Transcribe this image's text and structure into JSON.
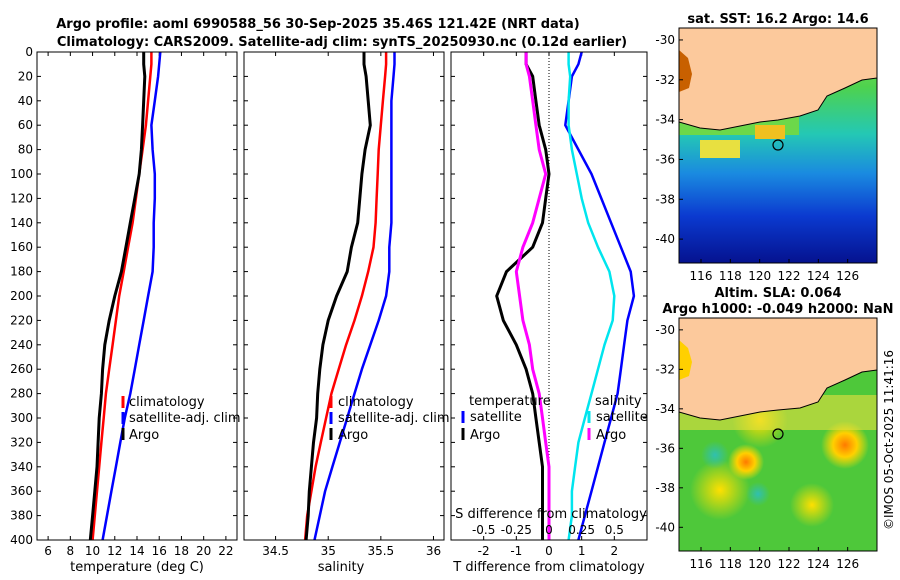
{
  "title_line1": "Argo profile: aoml 6990588_56 30-Sep-2025 35.46S 121.42E (NRT data)",
  "title_line2": "Climatology: CARS2009. Satellite-adj clim: synTS_20250930.nc (0.12d earlier)",
  "watermark": "©IMOS 05-Oct-2025 11:41:16",
  "colors": {
    "argo": "#000000",
    "clim": "#ff0000",
    "sat": "#0000ff",
    "sdiff": "#00e5ee",
    "tdiff_argo": "#ff00ff",
    "land": "#fcc99c"
  },
  "chart_data": [
    {
      "type": "line",
      "id": "temperature",
      "xlabel": "temperature (deg C)",
      "xlim": [
        5,
        23
      ],
      "xticks": [
        "6",
        "8",
        "10",
        "12",
        "14",
        "16",
        "18",
        "20",
        "22"
      ],
      "ylim": [
        0,
        400
      ],
      "yticks": [
        "0",
        "20",
        "40",
        "60",
        "80",
        "100",
        "120",
        "140",
        "160",
        "180",
        "200",
        "220",
        "240",
        "260",
        "280",
        "300",
        "320",
        "340",
        "360",
        "380",
        "400"
      ],
      "depth": [
        0,
        10,
        20,
        40,
        60,
        80,
        100,
        120,
        140,
        160,
        180,
        200,
        220,
        240,
        260,
        280,
        300,
        320,
        340,
        360,
        380,
        400
      ],
      "series": [
        {
          "name": "climatology",
          "color": "#ff0000",
          "values": [
            15.3,
            15.3,
            15.2,
            15.0,
            14.8,
            14.5,
            14.2,
            13.9,
            13.6,
            13.2,
            12.8,
            12.4,
            12.1,
            11.8,
            11.5,
            11.2,
            11.0,
            10.8,
            10.6,
            10.4,
            10.2,
            10.0
          ]
        },
        {
          "name": "satellite-adj. clim",
          "color": "#0000ff",
          "values": [
            16.1,
            16.0,
            15.9,
            15.6,
            15.3,
            15.4,
            15.6,
            15.6,
            15.5,
            15.5,
            15.4,
            15.0,
            14.6,
            14.2,
            13.8,
            13.4,
            12.9,
            12.5,
            12.1,
            11.7,
            11.3,
            10.9
          ]
        },
        {
          "name": "Argo",
          "color": "#000000",
          "values": [
            14.6,
            14.6,
            14.7,
            14.6,
            14.5,
            14.4,
            14.2,
            13.8,
            13.4,
            13.0,
            12.6,
            12.0,
            11.5,
            11.1,
            10.9,
            10.8,
            10.6,
            10.5,
            10.4,
            10.2,
            10.0,
            9.8
          ]
        }
      ],
      "legend": [
        "climatology",
        "satellite-adj. clim",
        "Argo"
      ]
    },
    {
      "type": "line",
      "id": "salinity",
      "xlabel": "salinity",
      "xlim": [
        34.2,
        36.1
      ],
      "xticks": [
        "34.5",
        "35",
        "35.5",
        "36"
      ],
      "ylim": [
        0,
        400
      ],
      "depth": [
        0,
        10,
        20,
        40,
        60,
        80,
        100,
        120,
        140,
        160,
        180,
        200,
        220,
        240,
        260,
        280,
        300,
        320,
        340,
        360,
        380,
        400
      ],
      "series": [
        {
          "name": "climatology",
          "color": "#ff0000",
          "values": [
            35.55,
            35.55,
            35.54,
            35.52,
            35.5,
            35.48,
            35.47,
            35.46,
            35.45,
            35.43,
            35.38,
            35.32,
            35.25,
            35.17,
            35.1,
            35.03,
            34.98,
            34.93,
            34.88,
            34.84,
            34.8,
            34.78
          ]
        },
        {
          "name": "satellite-adj. clim",
          "color": "#0000ff",
          "values": [
            35.63,
            35.63,
            35.62,
            35.6,
            35.6,
            35.6,
            35.6,
            35.6,
            35.6,
            35.58,
            35.58,
            35.55,
            35.48,
            35.4,
            35.32,
            35.25,
            35.18,
            35.11,
            35.04,
            34.97,
            34.92,
            34.87
          ]
        },
        {
          "name": "Argo",
          "color": "#000000",
          "values": [
            35.34,
            35.34,
            35.36,
            35.38,
            35.4,
            35.35,
            35.32,
            35.3,
            35.28,
            35.22,
            35.18,
            35.08,
            35.0,
            34.95,
            34.92,
            34.9,
            34.89,
            34.86,
            34.84,
            34.82,
            34.81,
            34.79
          ]
        }
      ],
      "legend": [
        "climatology",
        "satellite-adj. clim",
        "Argo"
      ]
    },
    {
      "type": "line",
      "id": "differences",
      "xlabel": "T difference from climatology",
      "xlabel_top": "S difference from climatology",
      "xlim": [
        -3,
        3
      ],
      "xticks": [
        "-2",
        "-1",
        "0",
        "1",
        "2"
      ],
      "xticks_s": [
        "-0.5",
        "-0.25",
        "0",
        "0.25",
        "0.5"
      ],
      "ylim": [
        0,
        400
      ],
      "depth": [
        0,
        10,
        20,
        40,
        60,
        80,
        100,
        120,
        140,
        160,
        180,
        200,
        220,
        240,
        260,
        280,
        300,
        320,
        340,
        360,
        380,
        400
      ],
      "series": [
        {
          "name": "temperature satellite",
          "color": "#0000ff",
          "values": [
            1.0,
            0.9,
            0.7,
            0.6,
            0.5,
            0.9,
            1.3,
            1.6,
            1.9,
            2.2,
            2.5,
            2.6,
            2.4,
            2.3,
            2.2,
            2.1,
            1.9,
            1.7,
            1.5,
            1.3,
            1.1,
            0.9
          ]
        },
        {
          "name": "temperature Argo",
          "color": "#000000",
          "values": [
            -0.7,
            -0.7,
            -0.5,
            -0.4,
            -0.3,
            -0.1,
            0.0,
            -0.1,
            -0.2,
            -0.5,
            -1.3,
            -1.6,
            -1.4,
            -1.0,
            -0.7,
            -0.5,
            -0.4,
            -0.3,
            -0.2,
            -0.2,
            -0.2,
            -0.2
          ]
        },
        {
          "name": "salinity satellite",
          "color": "#00e5ee",
          "values": [
            0.6,
            0.6,
            0.65,
            0.6,
            0.6,
            0.7,
            0.85,
            1.0,
            1.2,
            1.5,
            1.85,
            2.0,
            1.95,
            1.7,
            1.5,
            1.3,
            1.1,
            0.9,
            0.8,
            0.7,
            0.7,
            0.6
          ]
        },
        {
          "name": "salinity Argo",
          "color": "#ff00ff",
          "values": [
            -0.7,
            -0.7,
            -0.6,
            -0.5,
            -0.4,
            -0.3,
            -0.1,
            -0.3,
            -0.5,
            -0.8,
            -1.0,
            -0.9,
            -0.8,
            -0.6,
            -0.5,
            -0.3,
            -0.2,
            -0.1,
            0.0,
            0.0,
            0.0,
            0.0
          ]
        }
      ],
      "legend_temperature": {
        "header": "temperature",
        "items": [
          "satellite",
          "Argo"
        ]
      },
      "legend_salinity": {
        "header": "salinity",
        "items": [
          "satellite",
          "Argo"
        ]
      }
    },
    {
      "type": "heatmap",
      "id": "sst_map",
      "title": "sat. SST: 16.2 Argo: 14.6",
      "xticks": [
        "116",
        "118",
        "120",
        "122",
        "124",
        "126"
      ],
      "yticks": [
        "-30",
        "-32",
        "-34",
        "-36",
        "-38",
        "-40"
      ],
      "float_position": {
        "lon": 121.42,
        "lat": -35.46
      }
    },
    {
      "type": "heatmap",
      "id": "sla_map",
      "title_line1": "Altim. SLA: 0.064",
      "title_line2": "Argo h1000: -0.049 h2000: NaN",
      "xticks": [
        "116",
        "118",
        "120",
        "122",
        "124",
        "126"
      ],
      "yticks": [
        "-30",
        "-32",
        "-34",
        "-36",
        "-38",
        "-40"
      ],
      "float_position": {
        "lon": 121.42,
        "lat": -35.46
      }
    }
  ]
}
